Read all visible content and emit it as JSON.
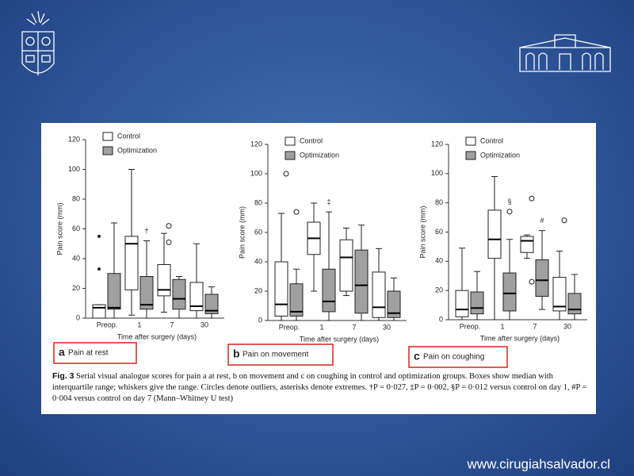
{
  "chart_data": [
    {
      "type": "box",
      "panel": "a",
      "title": "Pain at rest",
      "ylabel": "Pain score (mm)",
      "xlabel": "Time after surgery (days)",
      "categories": [
        "Preop.",
        "1",
        "7",
        "30"
      ],
      "ylim": [
        0,
        120
      ],
      "yticks": [
        0,
        20,
        40,
        60,
        80,
        100,
        120
      ],
      "series": [
        {
          "name": "Control",
          "color": "#ffffff",
          "min": [
            0,
            2,
            4,
            0
          ],
          "q1": [
            0,
            19,
            15,
            5
          ],
          "median": [
            7,
            50,
            19,
            8
          ],
          "q3": [
            9,
            55,
            36,
            24
          ],
          "max": [
            9,
            100,
            57,
            50
          ],
          "outliers": [
            [],
            [],
            [
              62,
              51
            ],
            []
          ],
          "extremes": [
            [
              55,
              33
            ],
            [],
            [],
            []
          ]
        },
        {
          "name": "Optimization",
          "color": "#a0a0a0",
          "min": [
            0,
            0,
            0,
            0
          ],
          "q1": [
            6,
            6,
            6,
            3
          ],
          "median": [
            7,
            9,
            13,
            5
          ],
          "q3": [
            30,
            28,
            26,
            16
          ],
          "max": [
            64,
            52,
            28,
            21
          ],
          "outliers": [
            [],
            [],
            [],
            []
          ]
        }
      ],
      "annotations": [
        {
          "text": "†",
          "series": "Optimization",
          "category": "1"
        }
      ]
    },
    {
      "type": "box",
      "panel": "b",
      "title": "Pain on movement",
      "ylabel": "Pain score (mm)",
      "xlabel": "Time after surgery (days)",
      "categories": [
        "Preop.",
        "1",
        "7",
        "30"
      ],
      "ylim": [
        0,
        120
      ],
      "yticks": [
        0,
        20,
        40,
        60,
        80,
        100,
        120
      ],
      "series": [
        {
          "name": "Control",
          "color": "#ffffff",
          "min": [
            0,
            20,
            17,
            0
          ],
          "q1": [
            3,
            45,
            20,
            2
          ],
          "median": [
            11,
            56,
            43,
            9
          ],
          "q3": [
            40,
            67,
            55,
            33
          ],
          "max": [
            73,
            80,
            63,
            49
          ],
          "outliers": [
            [
              100
            ],
            [],
            [],
            []
          ]
        },
        {
          "name": "Optimization",
          "color": "#a0a0a0",
          "min": [
            0,
            0,
            0,
            0
          ],
          "q1": [
            3,
            6,
            5,
            2
          ],
          "median": [
            6,
            13,
            24,
            5
          ],
          "q3": [
            25,
            35,
            48,
            20
          ],
          "max": [
            35,
            74,
            65,
            29
          ],
          "outliers": [
            [
              74
            ],
            [],
            [],
            []
          ]
        }
      ],
      "annotations": [
        {
          "text": "‡",
          "series": "Optimization",
          "category": "1"
        }
      ]
    },
    {
      "type": "box",
      "panel": "c",
      "title": "Pain on coughing",
      "ylabel": "Pain score (mm)",
      "xlabel": "Time after surgery (days)",
      "categories": [
        "Preop.",
        "1",
        "7",
        "30"
      ],
      "ylim": [
        0,
        120
      ],
      "yticks": [
        0,
        20,
        40,
        60,
        80,
        100,
        120
      ],
      "series": [
        {
          "name": "Control",
          "color": "#ffffff",
          "min": [
            0,
            0,
            42,
            0
          ],
          "q1": [
            2,
            42,
            46,
            6
          ],
          "median": [
            7,
            55,
            54,
            9
          ],
          "q3": [
            20,
            75,
            57,
            29
          ],
          "max": [
            49,
            98,
            58,
            47
          ],
          "outliers": [
            [],
            [],
            [
              83,
              26
            ],
            [
              68
            ]
          ]
        },
        {
          "name": "Optimization",
          "color": "#a0a0a0",
          "min": [
            0,
            0,
            7,
            0
          ],
          "q1": [
            4,
            6,
            16,
            4
          ],
          "median": [
            8,
            18,
            27,
            7
          ],
          "q3": [
            19,
            32,
            41,
            18
          ],
          "max": [
            33,
            55,
            61,
            31
          ],
          "outliers": [
            [],
            [
              74
            ],
            [],
            []
          ]
        }
      ],
      "annotations": [
        {
          "text": "§",
          "series": "Optimization",
          "category": "1"
        },
        {
          "text": "#",
          "series": "Optimization",
          "category": "7"
        }
      ]
    }
  ],
  "caption": {
    "label": "Fig. 3",
    "text": "Serial visual analogue scores for pain a at rest, b on movement and c on coughing in control and optimization groups. Boxes show median with interquartile range; whiskers give the range. Circles denote outliers, asterisks denote extremes. †P = 0·027, ‡P = 0·002, §P = 0·012 versus control on day 1, #P = 0·004 versus control on day 7 (Mann–Whitney U test)"
  },
  "website": "www.cirugiahsalvador.cl"
}
